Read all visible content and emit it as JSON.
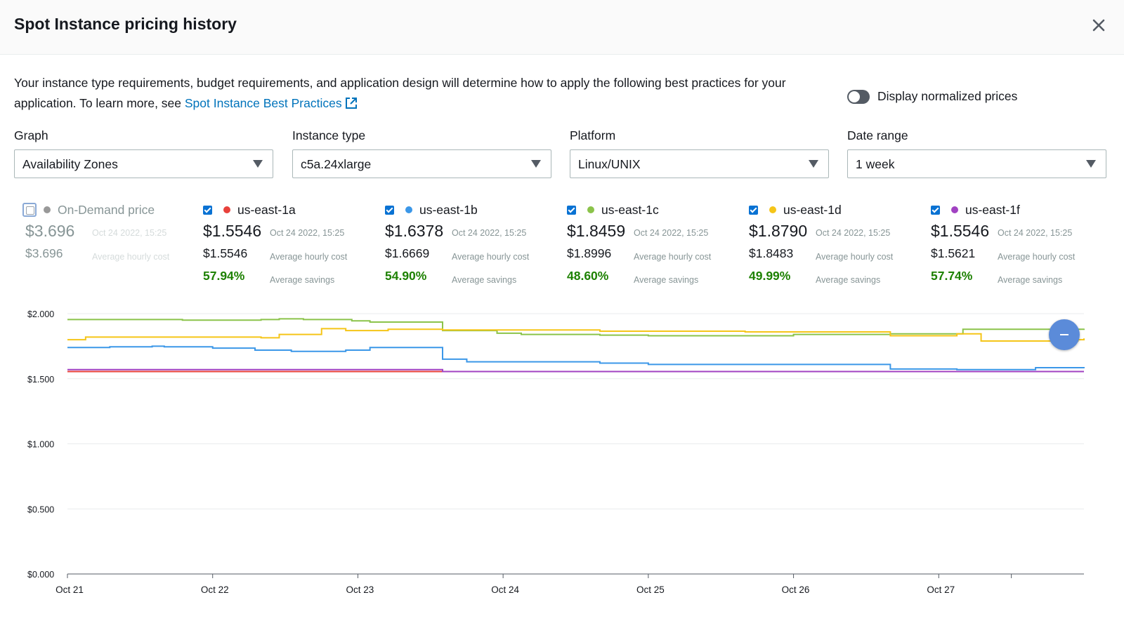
{
  "modal": {
    "title": "Spot Instance pricing history"
  },
  "intro": {
    "text": "Your instance type requirements, budget requirements, and application design will determine how to apply the following best practices for your application. To learn more, see ",
    "link": "Spot Instance Best Practices"
  },
  "toggle": {
    "label": "Display normalized prices",
    "on": false
  },
  "filters": [
    {
      "label": "Graph",
      "value": "Availability Zones"
    },
    {
      "label": "Instance type",
      "value": "c5a.24xlarge"
    },
    {
      "label": "Platform",
      "value": "Linux/UNIX"
    },
    {
      "label": "Date range",
      "value": "1 week"
    }
  ],
  "legend": [
    {
      "name": "On-Demand price",
      "checked": false,
      "color": "#999999",
      "price": "$3.696",
      "timestamp": "Oct 24 2022, 15:25",
      "avg": "$3.696",
      "avg_label": "Average hourly cost"
    },
    {
      "name": "us-east-1a",
      "checked": true,
      "color": "#e8413b",
      "price": "$1.5546",
      "timestamp": "Oct 24 2022, 15:25",
      "avg": "$1.5546",
      "avg_label": "Average hourly cost",
      "savings": "57.94%",
      "savings_label": "Average savings"
    },
    {
      "name": "us-east-1b",
      "checked": true,
      "color": "#3b97e8",
      "price": "$1.6378",
      "timestamp": "Oct 24 2022, 15:25",
      "avg": "$1.6669",
      "avg_label": "Average hourly cost",
      "savings": "54.90%",
      "savings_label": "Average savings"
    },
    {
      "name": "us-east-1c",
      "checked": true,
      "color": "#8bc34a",
      "price": "$1.8459",
      "timestamp": "Oct 24 2022, 15:25",
      "avg": "$1.8996",
      "avg_label": "Average hourly cost",
      "savings": "48.60%",
      "savings_label": "Average savings"
    },
    {
      "name": "us-east-1d",
      "checked": true,
      "color": "#f5c518",
      "price": "$1.8790",
      "timestamp": "Oct 24 2022, 15:25",
      "avg": "$1.8483",
      "avg_label": "Average hourly cost",
      "savings": "49.99%",
      "savings_label": "Average savings"
    },
    {
      "name": "us-east-1f",
      "checked": true,
      "color": "#a142c2",
      "price": "$1.5546",
      "timestamp": "Oct 24 2022, 15:25",
      "avg": "$1.5621",
      "avg_label": "Average hourly cost",
      "savings": "57.74%",
      "savings_label": "Average savings"
    }
  ],
  "chart_data": {
    "type": "line",
    "step": true,
    "x_range": [
      "Oct 21",
      "Oct 28"
    ],
    "x_ticks": [
      "Oct 21",
      "Oct 22",
      "Oct 23",
      "Oct 24",
      "Oct 25",
      "Oct 26",
      "Oct 27"
    ],
    "y_ticks": [
      "$0.000",
      "$0.500",
      "$1.000",
      "$1.500",
      "$2.000"
    ],
    "ylim": [
      0,
      2.0
    ],
    "grid": true,
    "series": [
      {
        "name": "us-east-1a",
        "color": "#e8413b",
        "points": [
          [
            "Oct 21",
            1.555
          ],
          [
            "Oct 23 16:00",
            1.555
          ],
          [
            "Oct 28",
            1.555
          ]
        ]
      },
      {
        "name": "us-east-1b",
        "color": "#3b97e8",
        "points": [
          [
            "Oct 21",
            1.74
          ],
          [
            "Oct 21 07:00",
            1.745
          ],
          [
            "Oct 21 14:00",
            1.75
          ],
          [
            "Oct 21 16:00",
            1.745
          ],
          [
            "Oct 22 00:00",
            1.735
          ],
          [
            "Oct 22 07:00",
            1.72
          ],
          [
            "Oct 22 13:00",
            1.71
          ],
          [
            "Oct 22 22:00",
            1.72
          ],
          [
            "Oct 23 02:00",
            1.74
          ],
          [
            "Oct 23 14:00",
            1.65
          ],
          [
            "Oct 23 18:00",
            1.63
          ],
          [
            "Oct 24 16:00",
            1.62
          ],
          [
            "Oct 25 00:00",
            1.61
          ],
          [
            "Oct 26 16:00",
            1.575
          ],
          [
            "Oct 27 03:00",
            1.57
          ],
          [
            "Oct 27 16:00",
            1.585
          ],
          [
            "Oct 28",
            1.58
          ]
        ]
      },
      {
        "name": "us-east-1c",
        "color": "#8bc34a",
        "points": [
          [
            "Oct 21",
            1.955
          ],
          [
            "Oct 21 19:00",
            1.95
          ],
          [
            "Oct 22 08:00",
            1.955
          ],
          [
            "Oct 22 11:00",
            1.96
          ],
          [
            "Oct 22 15:00",
            1.955
          ],
          [
            "Oct 22 23:00",
            1.945
          ],
          [
            "Oct 23 02:00",
            1.935
          ],
          [
            "Oct 23 14:00",
            1.87
          ],
          [
            "Oct 23 23:00",
            1.85
          ],
          [
            "Oct 24 03:00",
            1.84
          ],
          [
            "Oct 24 16:00",
            1.835
          ],
          [
            "Oct 25 00:00",
            1.83
          ],
          [
            "Oct 25 16:00",
            1.83
          ],
          [
            "Oct 26 00:00",
            1.84
          ],
          [
            "Oct 26 16:00",
            1.845
          ],
          [
            "Oct 27 04:00",
            1.88
          ],
          [
            "Oct 28",
            1.885
          ]
        ]
      },
      {
        "name": "us-east-1d",
        "color": "#f5c518",
        "points": [
          [
            "Oct 21",
            1.8
          ],
          [
            "Oct 21 03:00",
            1.82
          ],
          [
            "Oct 22 08:00",
            1.815
          ],
          [
            "Oct 22 11:00",
            1.84
          ],
          [
            "Oct 22 18:00",
            1.885
          ],
          [
            "Oct 22 22:00",
            1.87
          ],
          [
            "Oct 23 05:00",
            1.88
          ],
          [
            "Oct 23 14:00",
            1.875
          ],
          [
            "Oct 24 16:00",
            1.865
          ],
          [
            "Oct 25 16:00",
            1.86
          ],
          [
            "Oct 26 16:00",
            1.83
          ],
          [
            "Oct 27 03:00",
            1.845
          ],
          [
            "Oct 27 07:00",
            1.79
          ],
          [
            "Oct 27 23:00",
            1.8
          ],
          [
            "Oct 28",
            1.81
          ]
        ]
      },
      {
        "name": "us-east-1f",
        "color": "#a142c2",
        "points": [
          [
            "Oct 21",
            1.57
          ],
          [
            "Oct 23 14:00",
            1.555
          ],
          [
            "Oct 28",
            1.555
          ]
        ]
      }
    ]
  }
}
